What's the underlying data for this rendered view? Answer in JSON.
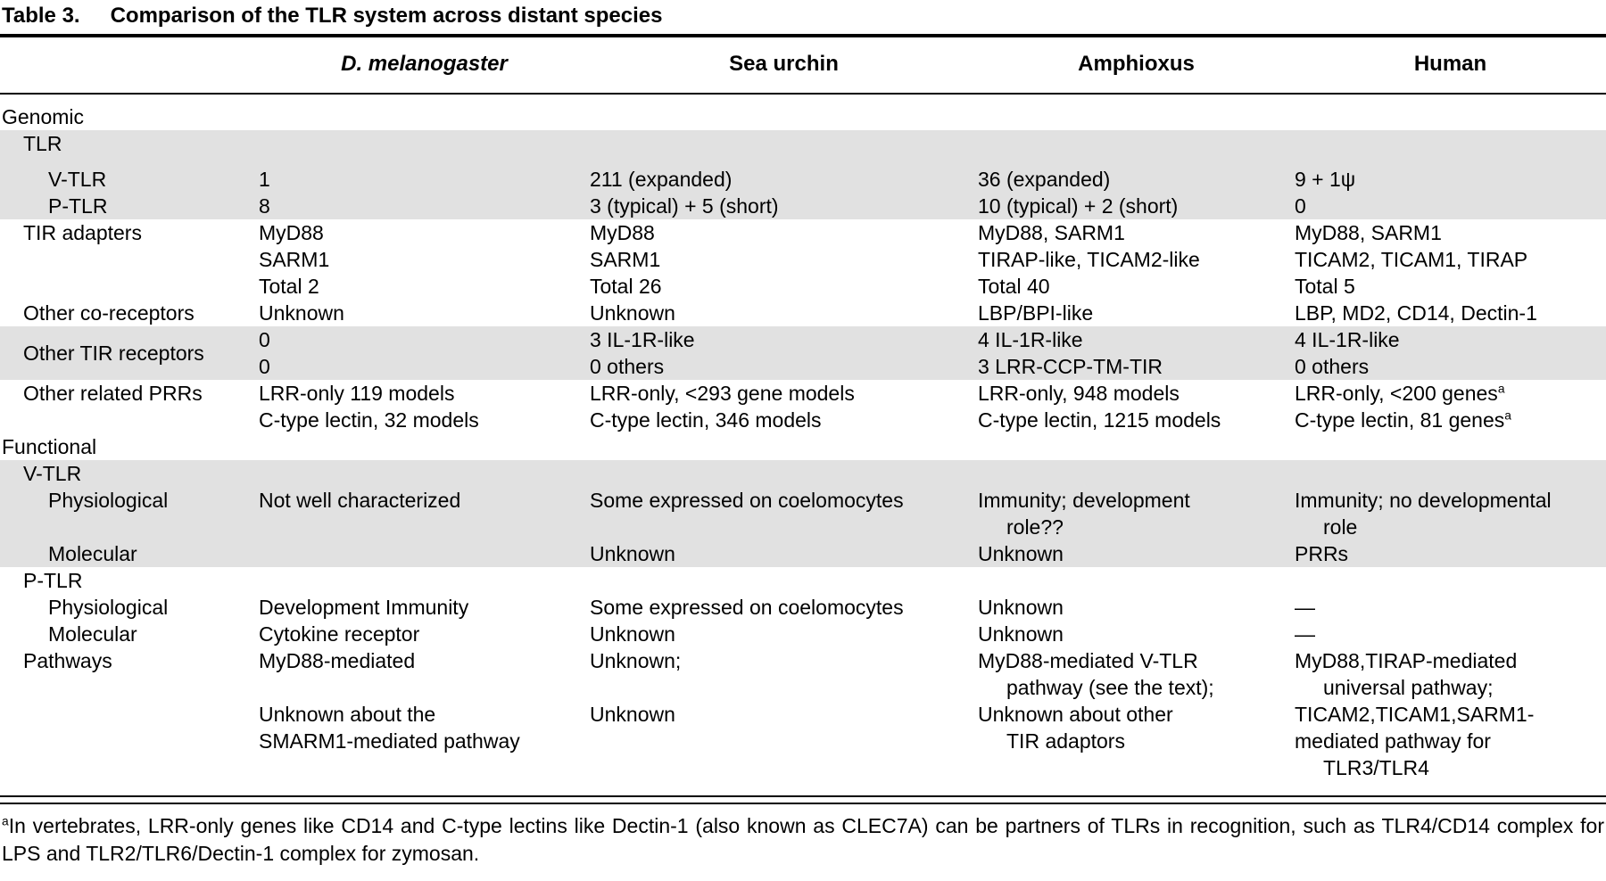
{
  "table": {
    "number": "Table 3.",
    "title": "Comparison of the TLR system across distant species",
    "columns": [
      "D. melanogaster",
      "Sea urchin",
      "Amphioxus",
      "Human"
    ],
    "rows": [
      {
        "label": "Genomic",
        "indent": 0,
        "shaded": false
      },
      {
        "label": "TLR",
        "indent": 1,
        "shaded": true
      },
      {
        "spacer": 10,
        "shaded": true
      },
      {
        "label": "V-TLR",
        "indent": 2,
        "shaded": true,
        "cells": [
          [
            "1"
          ],
          [
            "211 (expanded)"
          ],
          [
            "36 (expanded)"
          ],
          [
            "9 + 1ψ"
          ]
        ]
      },
      {
        "label": "P-TLR",
        "indent": 2,
        "shaded": true,
        "cells": [
          [
            "8"
          ],
          [
            "3 (typical) + 5 (short)"
          ],
          [
            "10 (typical) + 2 (short)"
          ],
          [
            "0"
          ]
        ]
      },
      {
        "label": "TIR adapters",
        "indent": 1,
        "shaded": false,
        "cells": [
          [
            "MyD88",
            "SARM1",
            "Total 2"
          ],
          [
            "MyD88",
            "SARM1",
            "Total 26"
          ],
          [
            "MyD88, SARM1",
            "TIRAP-like, TICAM2-like",
            "Total 40"
          ],
          [
            "MyD88, SARM1",
            "TICAM2, TICAM1, TIRAP",
            "Total 5"
          ]
        ]
      },
      {
        "label": "Other co-receptors",
        "indent": 1,
        "shaded": false,
        "cells": [
          [
            "Unknown"
          ],
          [
            "Unknown"
          ],
          [
            "LBP/BPI-like"
          ],
          [
            "LBP, MD2, CD14, Dectin-1"
          ]
        ]
      },
      {
        "label": "Other TIR receptors",
        "indent": 1,
        "shaded": true,
        "label_middle": true,
        "cells": [
          [
            "0",
            "0"
          ],
          [
            "3 IL-1R-like",
            "0 others"
          ],
          [
            "4 IL-1R-like",
            "3 LRR-CCP-TM-TIR"
          ],
          [
            "4 IL-1R-like",
            "0 others"
          ]
        ]
      },
      {
        "label": "Other related PRRs",
        "indent": 1,
        "shaded": false,
        "cells": [
          [
            "LRR-only 119 models",
            "C-type lectin, 32 models"
          ],
          [
            "LRR-only, <293 gene models",
            "C-type lectin, 346 models"
          ],
          [
            "LRR-only, 948 models",
            "C-type lectin, 1215 models"
          ],
          [
            {
              "text": "LRR-only, <200 genes",
              "sup": "a"
            },
            {
              "text": "C-type lectin, 81 genes",
              "sup": "a"
            }
          ]
        ]
      },
      {
        "label": "Functional",
        "indent": 0,
        "shaded": false
      },
      {
        "label": "V-TLR",
        "indent": 1,
        "shaded": true
      },
      {
        "label": "Physiological",
        "indent": 2,
        "shaded": true,
        "cells": [
          [
            "Not well characterized"
          ],
          [
            "Some expressed on coelomocytes"
          ],
          [
            "Immunity; development",
            {
              "text": "role??",
              "hang": true
            }
          ],
          [
            "Immunity; no developmental",
            {
              "text": "role",
              "hang": true
            }
          ]
        ]
      },
      {
        "label": "Molecular",
        "indent": 2,
        "shaded": true,
        "cells": [
          [
            ""
          ],
          [
            "Unknown"
          ],
          [
            "Unknown"
          ],
          [
            "PRRs"
          ]
        ]
      },
      {
        "label": "P-TLR",
        "indent": 1,
        "shaded": false
      },
      {
        "label": "Physiological",
        "indent": 2,
        "shaded": false,
        "cells": [
          [
            "Development Immunity"
          ],
          [
            "Some expressed on coelomocytes"
          ],
          [
            "Unknown"
          ],
          [
            "—"
          ]
        ]
      },
      {
        "label": "Molecular",
        "indent": 2,
        "shaded": false,
        "cells": [
          [
            "Cytokine receptor"
          ],
          [
            "Unknown"
          ],
          [
            "Unknown"
          ],
          [
            "—"
          ]
        ]
      },
      {
        "label": "Pathways",
        "indent": 1,
        "shaded": false,
        "cells": [
          [
            "MyD88-mediated",
            "",
            "Unknown about the",
            "SMARM1-mediated pathway"
          ],
          [
            "Unknown;",
            "",
            "Unknown"
          ],
          [
            "MyD88-mediated V-TLR",
            {
              "text": "pathway (see the text);",
              "hang": true
            },
            "Unknown about other",
            {
              "text": "TIR adaptors",
              "hang": true
            }
          ],
          [
            "MyD88,TIRAP-mediated",
            {
              "text": "universal pathway;",
              "hang": true
            },
            "TICAM2,TICAM1,SARM1-",
            "mediated pathway for",
            {
              "text": "TLR3/TLR4",
              "hang": true
            }
          ]
        ]
      }
    ],
    "footnote": {
      "marker": "a",
      "text": "In vertebrates, LRR-only genes like CD14 and C-type lectins like Dectin-1 (also known as CLEC7A) can be partners of TLRs in recognition, such as TLR4/CD14 complex for LPS and TLR2/TLR6/Dectin-1 complex for zymosan."
    }
  }
}
